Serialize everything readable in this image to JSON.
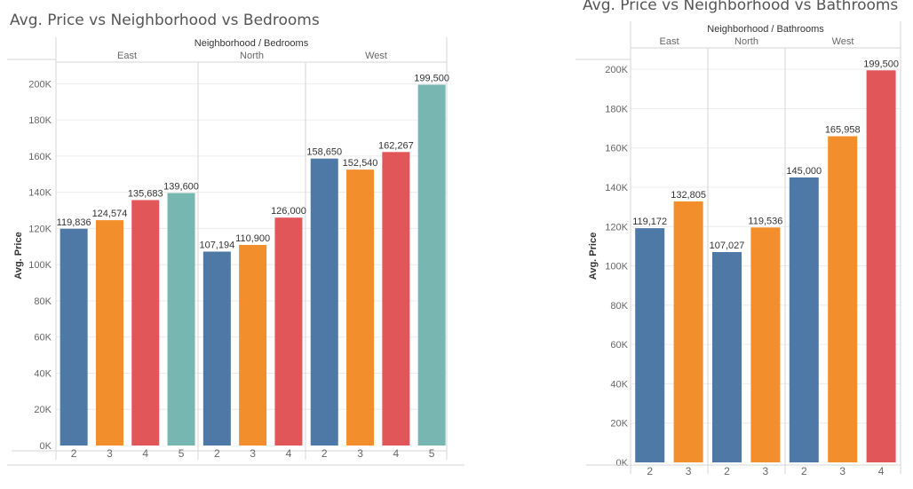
{
  "colors": {
    "bar_2": "#4e79a7",
    "bar_3": "#f28e2b",
    "bar_4": "#e15759",
    "bar_5": "#76b7b2",
    "gridline": "#ececec",
    "divider": "#d5d5d5"
  },
  "chart_data": [
    {
      "type": "bar",
      "title": "Avg. Price vs Neighborhood vs Bedrooms",
      "header": "Neighborhood / Bedrooms",
      "ylabel": "Avg. Price",
      "ylim": [
        0,
        210000
      ],
      "yticks": [
        0,
        20000,
        40000,
        60000,
        80000,
        100000,
        120000,
        140000,
        160000,
        180000,
        200000
      ],
      "ytick_labels": [
        "0K",
        "20K",
        "40K",
        "60K",
        "80K",
        "100K",
        "120K",
        "140K",
        "160K",
        "180K",
        "200K"
      ],
      "groups": [
        {
          "name": "East",
          "bars": [
            {
              "category": "2",
              "value": 119836,
              "label": "119,836"
            },
            {
              "category": "3",
              "value": 124574,
              "label": "124,574"
            },
            {
              "category": "4",
              "value": 135683,
              "label": "135,683"
            },
            {
              "category": "5",
              "value": 139600,
              "label": "139,600"
            }
          ]
        },
        {
          "name": "North",
          "bars": [
            {
              "category": "2",
              "value": 107194,
              "label": "107,194"
            },
            {
              "category": "3",
              "value": 110900,
              "label": "110,900"
            },
            {
              "category": "4",
              "value": 126000,
              "label": "126,000"
            }
          ]
        },
        {
          "name": "West",
          "bars": [
            {
              "category": "2",
              "value": 158650,
              "label": "158,650"
            },
            {
              "category": "3",
              "value": 152540,
              "label": "152,540"
            },
            {
              "category": "4",
              "value": 162267,
              "label": "162,267"
            },
            {
              "category": "5",
              "value": 199500,
              "label": "199,500"
            }
          ]
        }
      ],
      "grid": true
    },
    {
      "type": "bar",
      "title": "Avg. Price vs Neighborhood vs Bathrooms",
      "header": "Neighborhood / Bathrooms",
      "ylabel": "Avg. Price",
      "ylim": [
        0,
        210000
      ],
      "yticks": [
        0,
        20000,
        40000,
        60000,
        80000,
        100000,
        120000,
        140000,
        160000,
        180000,
        200000
      ],
      "ytick_labels": [
        "0K",
        "20K",
        "40K",
        "60K",
        "80K",
        "100K",
        "120K",
        "140K",
        "160K",
        "180K",
        "200K"
      ],
      "groups": [
        {
          "name": "East",
          "bars": [
            {
              "category": "2",
              "value": 119172,
              "label": "119,172"
            },
            {
              "category": "3",
              "value": 132805,
              "label": "132,805"
            }
          ]
        },
        {
          "name": "North",
          "bars": [
            {
              "category": "2",
              "value": 107027,
              "label": "107,027"
            },
            {
              "category": "3",
              "value": 119536,
              "label": "119,536"
            }
          ]
        },
        {
          "name": "West",
          "bars": [
            {
              "category": "2",
              "value": 145000,
              "label": "145,000"
            },
            {
              "category": "3",
              "value": 165958,
              "label": "165,958"
            },
            {
              "category": "4",
              "value": 199500,
              "label": "199,500"
            }
          ]
        }
      ],
      "grid": true
    }
  ]
}
